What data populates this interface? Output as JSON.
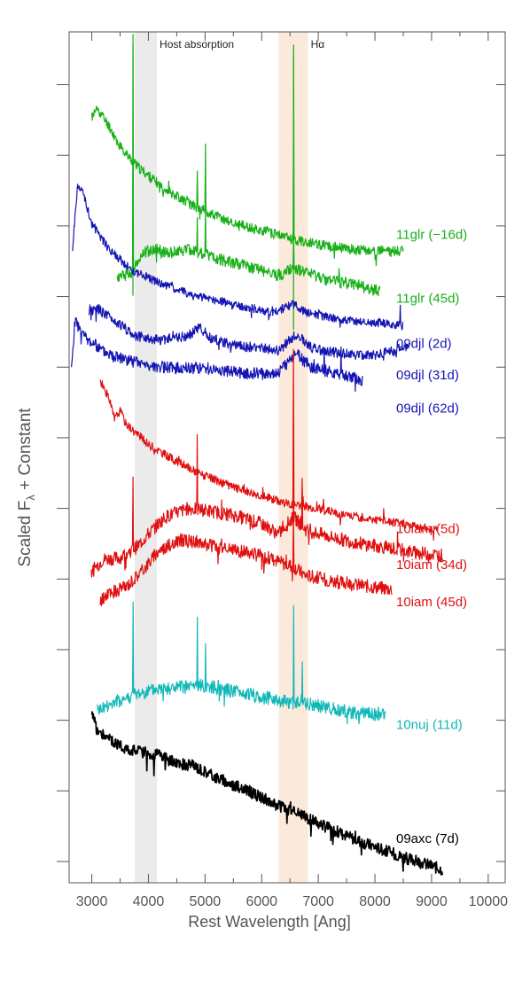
{
  "chart_data": {
    "type": "line",
    "title": "",
    "xlabel": "Rest Wavelength [Ang]",
    "ylabel_main": "Scaled F",
    "ylabel_sub": "λ",
    "ylabel_rest": " + Constant",
    "xlim": [
      2600,
      10300
    ],
    "ylim": [
      0,
      1
    ],
    "xticks": [
      3000,
      4000,
      5000,
      6000,
      7000,
      8000,
      9000,
      10000
    ],
    "xtick_labels": [
      "3000",
      "4000",
      "5000",
      "6000",
      "7000",
      "8000",
      "9000",
      "10000"
    ],
    "yticks": [
      0.025,
      0.108,
      0.191,
      0.274,
      0.357,
      0.44,
      0.523,
      0.606,
      0.689,
      0.772,
      0.855,
      0.938
    ],
    "bands": [
      {
        "label": "Host absorption",
        "x0": 3760,
        "x1": 4150,
        "color": "#ebebeb"
      },
      {
        "label": "Hα",
        "x0": 6300,
        "x1": 6820,
        "color": "#fbeadb"
      }
    ],
    "lines": [
      {
        "x": [
          3727,
          3727
        ],
        "y": [
          0.69,
          0.985
        ],
        "color": "#1aa31a"
      },
      {
        "x": [
          6563,
          6563
        ],
        "y": [
          0.65,
          0.985
        ],
        "color": "#1aa31a"
      }
    ],
    "series": [
      {
        "name": "11glr (−16d)",
        "color": "#18b018",
        "width": 1.2,
        "noise": 0.006,
        "seed": 11,
        "x": [
          3000,
          3100,
          3300,
          3500,
          3800,
          4200,
          4800,
          5500,
          6200,
          6800,
          7500,
          8000,
          8500
        ],
        "y": [
          0.9,
          0.91,
          0.89,
          0.865,
          0.842,
          0.82,
          0.795,
          0.775,
          0.763,
          0.752,
          0.745,
          0.742,
          0.742
        ],
        "spikes": [
          [
            4861,
            0.04
          ],
          [
            5007,
            0.085
          ],
          [
            6563,
            0.22
          ]
        ]
      },
      {
        "name": "11glr (45d)",
        "color": "#18b018",
        "width": 1.2,
        "noise": 0.007,
        "seed": 12,
        "x": [
          3450,
          3700,
          3900,
          4100,
          4400,
          4700,
          5000,
          5400,
          5900,
          6300,
          6563,
          6800,
          7200,
          7700,
          8100
        ],
        "y": [
          0.71,
          0.718,
          0.74,
          0.745,
          0.74,
          0.745,
          0.738,
          0.73,
          0.722,
          0.714,
          0.722,
          0.716,
          0.708,
          0.702,
          0.695
        ],
        "spikes": [
          [
            3727,
            0.27
          ],
          [
            4861,
            0.045
          ],
          [
            5007,
            0.06
          ],
          [
            6563,
            0.04
          ]
        ]
      },
      {
        "name": "09djl (2d)",
        "color": "#1414b4",
        "width": 1.2,
        "noise": 0.005,
        "seed": 21,
        "x": [
          2660,
          2750,
          2850,
          3000,
          3300,
          3700,
          4200,
          4800,
          5500,
          6200,
          6550,
          6800,
          7400,
          8000,
          8500
        ],
        "y": [
          0.745,
          0.82,
          0.81,
          0.775,
          0.745,
          0.72,
          0.705,
          0.69,
          0.68,
          0.67,
          0.68,
          0.67,
          0.662,
          0.658,
          0.655
        ],
        "spikes": [
          [
            8450,
            0.02
          ]
        ]
      },
      {
        "name": "09djl (31d)",
        "color": "#1414b4",
        "width": 1.2,
        "noise": 0.006,
        "seed": 22,
        "x": [
          2950,
          3100,
          3400,
          3800,
          4200,
          4700,
          4900,
          5100,
          5500,
          6000,
          6300,
          6600,
          6900,
          7400,
          8000,
          8600
        ],
        "y": [
          0.672,
          0.675,
          0.66,
          0.642,
          0.638,
          0.642,
          0.653,
          0.64,
          0.632,
          0.628,
          0.625,
          0.645,
          0.628,
          0.622,
          0.62,
          0.63
        ],
        "spikes": []
      },
      {
        "name": "09djl (62d)",
        "color": "#1414b4",
        "width": 1.2,
        "noise": 0.007,
        "seed": 23,
        "x": [
          2640,
          2700,
          2900,
          3200,
          3600,
          4000,
          4500,
          5000,
          5500,
          6000,
          6300,
          6600,
          6900,
          7400,
          7780
        ],
        "y": [
          0.6,
          0.66,
          0.64,
          0.625,
          0.615,
          0.608,
          0.605,
          0.605,
          0.6,
          0.598,
          0.6,
          0.622,
          0.605,
          0.598,
          0.59
        ],
        "spikes": [
          [
            7100,
            0.03
          ],
          [
            7400,
            0.025
          ]
        ]
      },
      {
        "name": "10iam (5d)",
        "color": "#e01010",
        "width": 1.2,
        "noise": 0.005,
        "seed": 31,
        "x": [
          3150,
          3300,
          3400,
          3500,
          3600,
          4000,
          4500,
          5000,
          5500,
          6000,
          6500,
          7000,
          7500,
          8000,
          8500,
          9100
        ],
        "y": [
          0.59,
          0.57,
          0.545,
          0.555,
          0.54,
          0.515,
          0.495,
          0.478,
          0.465,
          0.455,
          0.445,
          0.44,
          0.432,
          0.427,
          0.422,
          0.415
        ],
        "spikes": [
          [
            6563,
            0.185
          ],
          [
            6717,
            0.03
          ],
          [
            8150,
            0.015
          ]
        ]
      },
      {
        "name": "10iam (34d)",
        "color": "#e01010",
        "width": 1.2,
        "noise": 0.008,
        "seed": 32,
        "x": [
          2990,
          3200,
          3500,
          3800,
          4000,
          4300,
          4700,
          5000,
          5500,
          6000,
          6300,
          6563,
          6800,
          7300,
          7800,
          8300,
          8700,
          9200
        ],
        "y": [
          0.365,
          0.38,
          0.382,
          0.395,
          0.41,
          0.43,
          0.44,
          0.438,
          0.432,
          0.422,
          0.41,
          0.43,
          0.414,
          0.405,
          0.398,
          0.393,
          0.388,
          0.385
        ],
        "spikes": [
          [
            3727,
            0.09
          ],
          [
            4861,
            0.08
          ],
          [
            6563,
            0.02
          ],
          [
            6717,
            0.035
          ]
        ]
      },
      {
        "name": "10iam (45d)",
        "color": "#e01010",
        "width": 1.2,
        "noise": 0.008,
        "seed": 33,
        "x": [
          3150,
          3300,
          3600,
          3900,
          4200,
          4600,
          4900,
          5300,
          5800,
          6200,
          6400,
          6563,
          6750,
          7200,
          7700,
          8300
        ],
        "y": [
          0.33,
          0.34,
          0.348,
          0.368,
          0.392,
          0.402,
          0.4,
          0.392,
          0.388,
          0.38,
          0.375,
          0.372,
          0.362,
          0.355,
          0.35,
          0.345
        ],
        "spikes": [
          [
            6563,
            0.065
          ]
        ]
      },
      {
        "name": "10nuj (11d)",
        "color": "#10b8b8",
        "width": 1.2,
        "noise": 0.008,
        "seed": 41,
        "x": [
          3100,
          3400,
          3800,
          4200,
          4600,
          5000,
          5500,
          6000,
          6300,
          6500,
          6800,
          7200,
          7600,
          8200
        ],
        "y": [
          0.202,
          0.212,
          0.222,
          0.228,
          0.23,
          0.232,
          0.225,
          0.218,
          0.215,
          0.212,
          0.21,
          0.205,
          0.2,
          0.198
        ],
        "spikes": [
          [
            3727,
            0.11
          ],
          [
            4861,
            0.08
          ],
          [
            5007,
            0.045
          ],
          [
            6563,
            0.11
          ],
          [
            6717,
            0.045
          ]
        ]
      },
      {
        "name": "09axc (7d)",
        "color": "#000000",
        "width": 1.7,
        "noise": 0.007,
        "seed": 51,
        "x": [
          3000,
          3100,
          3300,
          3500,
          3800,
          4200,
          4500,
          4800,
          5200,
          5600,
          6000,
          6300,
          6600,
          7000,
          7500,
          8000,
          8500,
          9000,
          9200
        ],
        "y": [
          0.2,
          0.178,
          0.17,
          0.16,
          0.155,
          0.15,
          0.14,
          0.138,
          0.124,
          0.112,
          0.1,
          0.09,
          0.082,
          0.07,
          0.055,
          0.042,
          0.03,
          0.02,
          0.015
        ],
        "spikes": [
          [
            3968,
            -0.025
          ],
          [
            4100,
            -0.02
          ],
          [
            4300,
            -0.018
          ],
          [
            6870,
            -0.018
          ],
          [
            8500,
            -0.015
          ]
        ]
      }
    ],
    "legend": [
      {
        "text": "11glr (−16d)",
        "color": "#18b018",
        "y": 0.762
      },
      {
        "text": "11glr (45d)",
        "color": "#18b018",
        "y": 0.687
      },
      {
        "text": "09djl (2d)",
        "color": "#1414b4",
        "y": 0.634
      },
      {
        "text": "09djl (31d)",
        "color": "#1414b4",
        "y": 0.597
      },
      {
        "text": "09djl (62d)",
        "color": "#1414b4",
        "y": 0.558
      },
      {
        "text": "10iam (5d)",
        "color": "#e01010",
        "y": 0.416
      },
      {
        "text": "10iam (34d)",
        "color": "#e01010",
        "y": 0.374
      },
      {
        "text": "10iam (45d)",
        "color": "#e01010",
        "y": 0.33
      },
      {
        "text": "10nuj (11d)",
        "color": "#10b8b8",
        "y": 0.186
      },
      {
        "text": "09axc (7d)",
        "color": "#000000",
        "y": 0.052
      }
    ]
  }
}
